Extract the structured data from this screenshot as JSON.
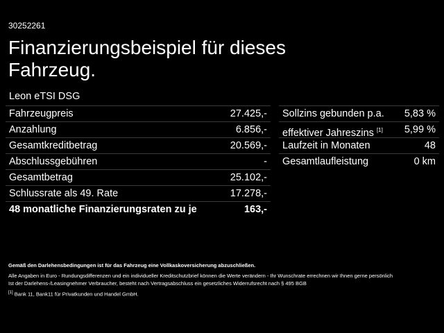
{
  "header": {
    "code": "30252261",
    "title_line1": "Finanzierungsbeispiel für dieses",
    "title_line2": "Fahrzeug."
  },
  "model": "Leon eTSI DSG",
  "left_table": {
    "rows": [
      {
        "label": "Fahrzeugpreis",
        "value": "27.425,-"
      },
      {
        "label": "Anzahlung",
        "value": "6.856,-"
      },
      {
        "label": "Gesamtkreditbetrag",
        "value": "20.569,-"
      },
      {
        "label": "Abschlussgebühren",
        "value": "-"
      },
      {
        "label": "Gesamtbetrag",
        "value": "25.102,-"
      },
      {
        "label": "Schlussrate als 49. Rate",
        "value": "17.278,-"
      },
      {
        "label": "48 monatliche Finanzierungsraten zu je",
        "value": "163,-"
      }
    ]
  },
  "right_table": {
    "rows": [
      {
        "label": "Sollzins gebunden p.a.",
        "value": "5,83 %"
      },
      {
        "label": "effektiver Jahreszins",
        "note": "[1]",
        "value": "5,99 %"
      },
      {
        "label": "Laufzeit in Monaten",
        "value": "48"
      },
      {
        "label": "Gesamtlaufleistung",
        "value": "0 km"
      }
    ]
  },
  "footer": {
    "bold_note": "Gemäß den Darlehensbedingungen ist für das Fahrzeug eine Vollkaskoversicherung abzuschließen.",
    "line1": "Alle Angaben in Euro - Rundungsdifferenzen und ein individueller Kreditschutzbrief können die Werte verändern - Ihr Wunschrate errechnen wir Ihnen gerne persönlich",
    "line2": "Ist der Darlehens-/Leasingnehmer Verbraucher, besteht nach Vertragsabschluss ein gesetzliches Widerrufsrecht nach § 495 BGB",
    "footnote_mark": "[1]",
    "footnote_text": "Bank 11, Bank11 für Privatkunden und Handel GmbH."
  }
}
